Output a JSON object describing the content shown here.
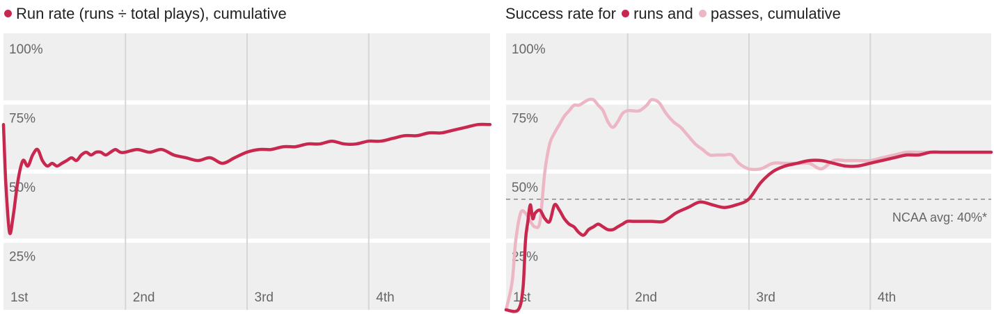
{
  "colors": {
    "runs": "#c8284e",
    "passes": "#ecb6c4",
    "panel_bg": "#efefef",
    "grid": "#d6d6d6",
    "text": "#222222",
    "label": "#666666"
  },
  "left": {
    "title": "Run rate (runs ÷ total plays), cumulative"
  },
  "right": {
    "title_prefix": "Success rate for",
    "title_runs": "runs and",
    "title_passes": "passes, cumulative",
    "ncaa_label": "NCAA avg: 40%*"
  },
  "chart_data": [
    {
      "type": "line",
      "title": "Run rate (runs ÷ total plays), cumulative",
      "xlabel": "",
      "ylabel": "",
      "categories": [
        "1st",
        "2nd",
        "3rd",
        "4th"
      ],
      "xlim": [
        0,
        4
      ],
      "ylim": [
        0,
        100
      ],
      "yticks": [
        100,
        75,
        50,
        25
      ],
      "ytick_labels": [
        "100%",
        "75%",
        "50%",
        "25%"
      ],
      "series": [
        {
          "key": "runs",
          "color": "#c8284e",
          "x": [
            0.0,
            0.02,
            0.05,
            0.08,
            0.12,
            0.16,
            0.2,
            0.24,
            0.28,
            0.32,
            0.36,
            0.4,
            0.44,
            0.48,
            0.52,
            0.56,
            0.6,
            0.64,
            0.68,
            0.72,
            0.76,
            0.8,
            0.84,
            0.88,
            0.92,
            0.96,
            1.0,
            1.1,
            1.2,
            1.3,
            1.4,
            1.5,
            1.6,
            1.7,
            1.8,
            1.9,
            2.0,
            2.1,
            2.2,
            2.3,
            2.4,
            2.5,
            2.6,
            2.7,
            2.8,
            2.9,
            3.0,
            3.1,
            3.2,
            3.3,
            3.4,
            3.5,
            3.6,
            3.7,
            3.8,
            3.9,
            4.0
          ],
          "y": [
            67,
            45,
            28,
            34,
            47,
            54,
            52,
            56,
            58,
            54,
            52,
            53,
            52,
            53,
            54,
            55,
            54,
            56,
            57,
            56,
            57,
            57,
            56,
            57,
            58,
            57,
            57,
            58,
            57,
            58,
            56,
            55,
            54,
            55,
            53,
            55,
            57,
            58,
            58,
            59,
            59,
            60,
            60,
            61,
            60,
            60,
            61,
            61,
            62,
            63,
            63,
            64,
            64,
            65,
            66,
            67,
            67
          ]
        }
      ]
    },
    {
      "type": "line",
      "title": "",
      "xlabel": "",
      "ylabel": "",
      "categories": [
        "1st",
        "2nd",
        "3rd",
        "4th"
      ],
      "xlim": [
        0,
        4
      ],
      "ylim": [
        0,
        100
      ],
      "yticks": [
        100,
        75,
        50,
        25
      ],
      "ytick_labels": [
        "100%",
        "75%",
        "50%",
        "25%"
      ],
      "reference_line": {
        "y": 40,
        "label": "NCAA avg: 40%*"
      },
      "series": [
        {
          "key": "passes",
          "color": "#ecb6c4",
          "x": [
            0.0,
            0.05,
            0.08,
            0.12,
            0.16,
            0.2,
            0.24,
            0.28,
            0.32,
            0.36,
            0.4,
            0.44,
            0.48,
            0.52,
            0.56,
            0.6,
            0.64,
            0.68,
            0.72,
            0.76,
            0.8,
            0.84,
            0.88,
            0.92,
            0.96,
            1.0,
            1.04,
            1.1,
            1.16,
            1.2,
            1.26,
            1.32,
            1.38,
            1.44,
            1.5,
            1.56,
            1.62,
            1.68,
            1.74,
            1.8,
            1.86,
            1.92,
            2.0,
            2.1,
            2.2,
            2.3,
            2.4,
            2.5,
            2.6,
            2.7,
            2.8,
            2.9,
            3.0,
            3.1,
            3.2,
            3.3,
            3.4,
            3.5,
            3.6,
            3.7,
            3.8,
            3.9,
            4.0
          ],
          "y": [
            0,
            10,
            25,
            35,
            35,
            32,
            30,
            32,
            50,
            60,
            64,
            67,
            70,
            72,
            74,
            74,
            75,
            76,
            76,
            74,
            72,
            68,
            66,
            68,
            71,
            72,
            72,
            72,
            74,
            76,
            75,
            71,
            68,
            66,
            63,
            60,
            58,
            56,
            56,
            56,
            56,
            53,
            51,
            51,
            53,
            53,
            53,
            53,
            51,
            54,
            54,
            54,
            54,
            55,
            56,
            57,
            57,
            57,
            57,
            57,
            57,
            57,
            57
          ]
        },
        {
          "key": "runs",
          "color": "#c8284e",
          "x": [
            0.0,
            0.1,
            0.14,
            0.16,
            0.18,
            0.2,
            0.22,
            0.24,
            0.28,
            0.32,
            0.36,
            0.4,
            0.44,
            0.48,
            0.52,
            0.56,
            0.6,
            0.64,
            0.68,
            0.72,
            0.76,
            0.8,
            0.84,
            0.88,
            0.92,
            0.96,
            1.0,
            1.05,
            1.1,
            1.2,
            1.3,
            1.4,
            1.5,
            1.6,
            1.7,
            1.8,
            1.9,
            2.0,
            2.1,
            2.2,
            2.3,
            2.4,
            2.5,
            2.6,
            2.7,
            2.8,
            2.9,
            3.0,
            3.1,
            3.2,
            3.3,
            3.4,
            3.5,
            3.6,
            3.7,
            3.8,
            3.9,
            4.0
          ],
          "y": [
            0,
            0,
            8,
            25,
            32,
            38,
            33,
            35,
            36,
            33,
            32,
            38,
            36,
            33,
            31,
            30,
            28,
            27,
            29,
            30,
            31,
            30,
            29,
            29,
            30,
            31,
            32,
            32,
            32,
            32,
            32,
            35,
            37,
            39,
            38,
            37,
            38,
            40,
            46,
            50,
            52,
            53,
            54,
            54,
            53,
            52,
            52,
            53,
            54,
            55,
            56,
            56,
            57,
            57,
            57,
            57,
            57,
            57
          ]
        }
      ]
    }
  ]
}
